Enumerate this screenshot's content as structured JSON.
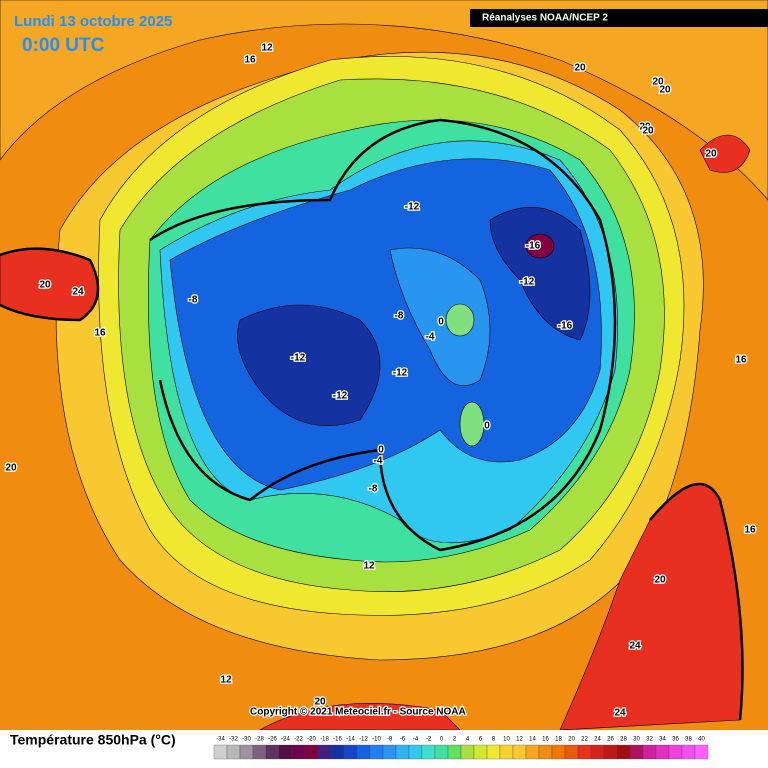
{
  "header": {
    "title": "Lundi 13 octobre 2025",
    "time": "0:00 UTC",
    "source_box": "Réanalyses NOAA/NCEP 2"
  },
  "map": {
    "contour_labels": [
      12,
      16,
      20,
      20,
      20,
      20,
      20,
      20,
      20,
      24,
      16,
      -8,
      -12,
      -16,
      -12,
      -16,
      -8,
      0,
      -4,
      -12,
      -12,
      -12,
      0,
      16,
      20,
      0,
      -4,
      -8,
      16,
      12,
      20,
      24,
      12,
      20,
      24
    ]
  },
  "footer": {
    "copyright": "Copyright © 2021 Meteociel.fr - Source NOAA",
    "legend_title": "Température 850hPa (°C)",
    "scale": [
      -34,
      -32,
      -30,
      -28,
      -26,
      -24,
      -22,
      -20,
      -18,
      -16,
      -14,
      -12,
      -10,
      -8,
      -6,
      -4,
      -2,
      0,
      2,
      4,
      6,
      8,
      10,
      12,
      14,
      16,
      18,
      20,
      22,
      24,
      26,
      28,
      30,
      32,
      34,
      36,
      38,
      40
    ]
  }
}
